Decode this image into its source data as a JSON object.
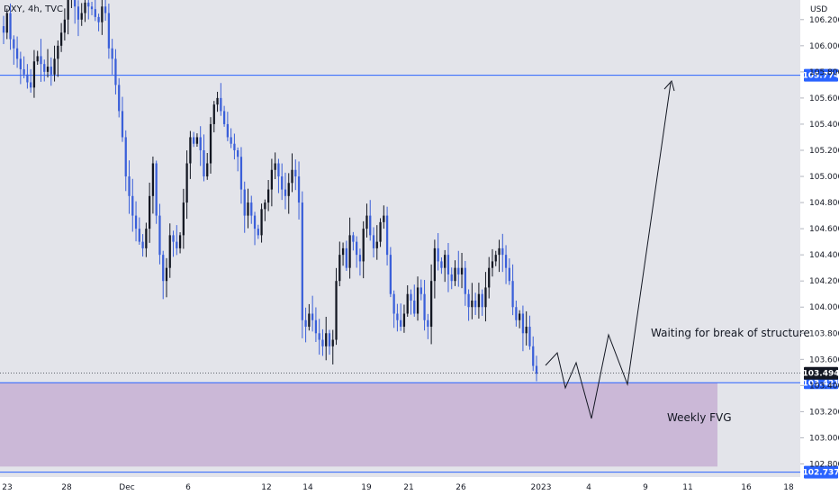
{
  "chart_data": {
    "type": "candlestick",
    "title": "DXY, 4h, TVC",
    "currency": "USD",
    "y_range": [
      102.7,
      106.35
    ],
    "y_ticks": [
      "106.200",
      "106.000",
      "105.800",
      "105.600",
      "105.400",
      "105.200",
      "105.000",
      "104.800",
      "104.600",
      "104.400",
      "104.200",
      "104.000",
      "103.800",
      "103.600",
      "103.400",
      "103.200",
      "103.000",
      "102.800"
    ],
    "x_ticks": [
      "23",
      "28",
      "Dec",
      "6",
      "12",
      "14",
      "19",
      "21",
      "26",
      "2023",
      "4",
      "9",
      "11",
      "16",
      "18"
    ],
    "levels": [
      {
        "value": 105.774,
        "label": "105.774"
      },
      {
        "value": 103.421,
        "label": "103.421"
      },
      {
        "value": 102.737,
        "label": "102.737"
      }
    ],
    "last_price": {
      "value": 103.494,
      "label": "103.494"
    },
    "zone": {
      "top": 103.421,
      "bottom": 102.78,
      "label": "Weekly FVG"
    },
    "annotation": "Waiting for break of structure",
    "closes": [
      106.1,
      106.25,
      106.05,
      105.98,
      105.9,
      105.82,
      105.78,
      105.72,
      105.68,
      105.88,
      105.92,
      105.86,
      105.8,
      105.84,
      105.78,
      105.9,
      106.0,
      106.1,
      106.2,
      106.35,
      106.4,
      106.3,
      106.2,
      106.25,
      106.33,
      106.3,
      106.28,
      106.22,
      106.18,
      106.3,
      106.25,
      105.98,
      105.9,
      105.7,
      105.5,
      105.3,
      105.0,
      104.85,
      104.7,
      104.6,
      104.5,
      104.45,
      104.6,
      104.85,
      105.1,
      104.7,
      104.4,
      104.2,
      104.3,
      104.55,
      104.5,
      104.45,
      104.55,
      104.8,
      105.1,
      105.3,
      105.25,
      105.3,
      105.2,
      105.0,
      105.1,
      105.4,
      105.55,
      105.6,
      105.5,
      105.4,
      105.3,
      105.25,
      105.2,
      105.15,
      104.9,
      104.7,
      104.8,
      104.7,
      104.6,
      104.55,
      104.75,
      104.8,
      104.9,
      105.05,
      105.1,
      105.0,
      104.9,
      104.85,
      104.95,
      105.05,
      105.0,
      104.8,
      103.9,
      103.85,
      103.95,
      103.9,
      103.8,
      103.75,
      103.7,
      103.8,
      103.7,
      103.75,
      104.2,
      104.4,
      104.45,
      104.3,
      104.55,
      104.5,
      104.4,
      104.35,
      104.6,
      104.7,
      104.55,
      104.45,
      104.5,
      104.65,
      104.7,
      104.4,
      104.1,
      103.95,
      103.9,
      103.85,
      103.95,
      104.1,
      104.05,
      103.95,
      104.15,
      104.1,
      103.9,
      103.85,
      104.2,
      104.45,
      104.35,
      104.3,
      104.4,
      104.25,
      104.2,
      104.3,
      104.25,
      104.3,
      104.1,
      104.0,
      104.05,
      104.0,
      104.1,
      104.0,
      104.15,
      104.3,
      104.35,
      104.4,
      104.45,
      104.4,
      104.3,
      104.2,
      104.0,
      103.9,
      103.95,
      103.8,
      103.85,
      103.7,
      103.55,
      103.49
    ]
  }
}
